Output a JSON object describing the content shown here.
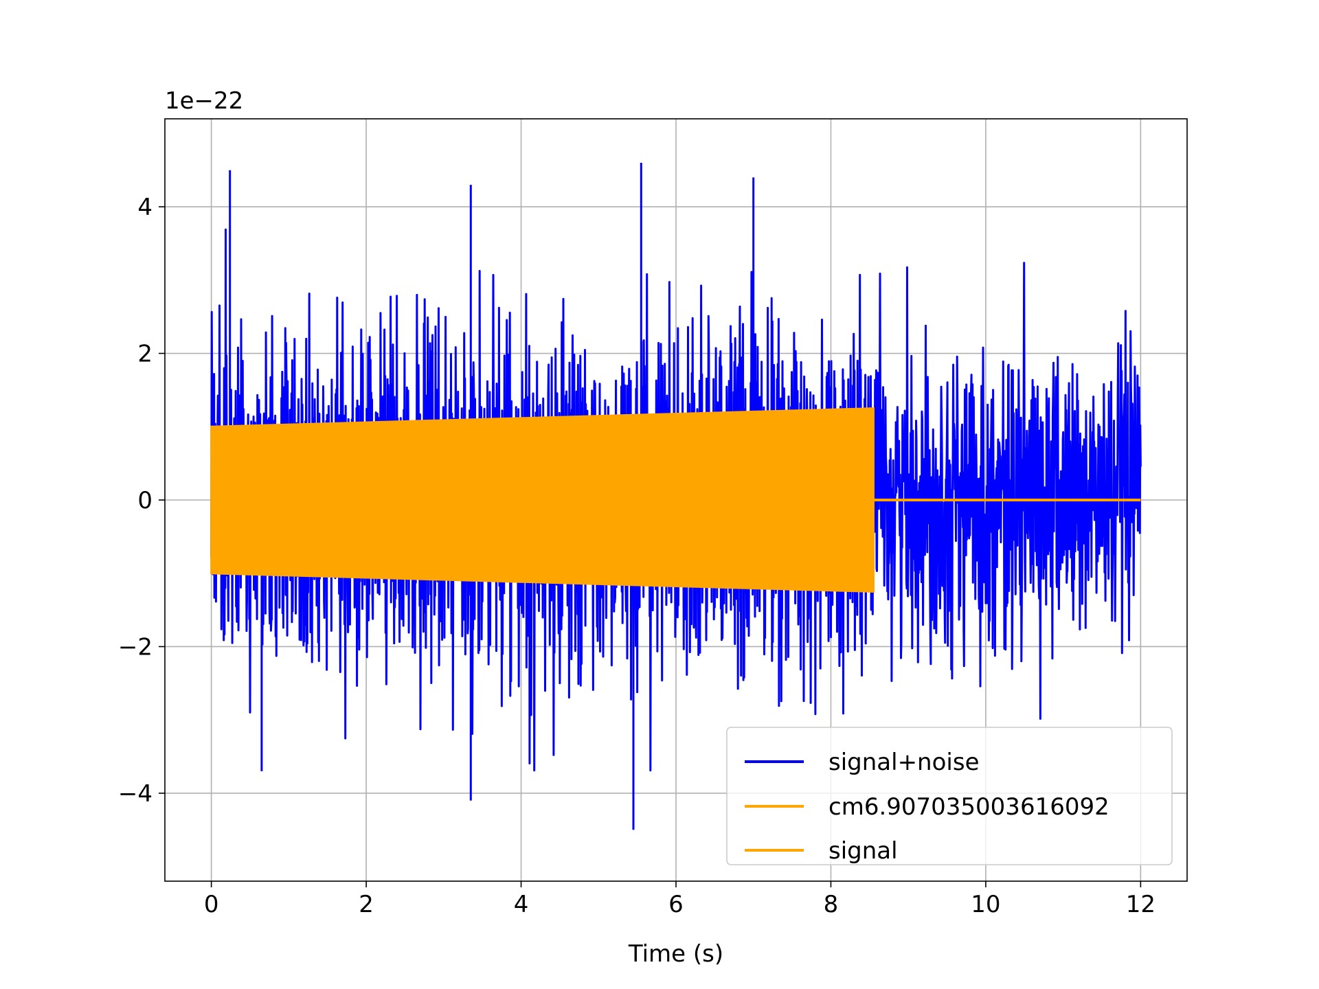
{
  "chart_data": {
    "type": "line",
    "title": "",
    "xlabel": "Time (s)",
    "ylabel": "",
    "offset_text": "1e−22",
    "xlim": [
      -0.6,
      12.6
    ],
    "ylim": [
      -5.2,
      5.2
    ],
    "x_ticks": [
      0,
      2,
      4,
      6,
      8,
      10,
      12
    ],
    "x_tick_labels": [
      "0",
      "2",
      "4",
      "6",
      "8",
      "10",
      "12"
    ],
    "y_ticks": [
      -4,
      -2,
      0,
      2,
      4
    ],
    "y_tick_labels": [
      "−4",
      "−2",
      "0",
      "2",
      "4"
    ],
    "grid": true,
    "legend_position": "lower-right",
    "series": [
      {
        "name": "signal+noise",
        "color": "#0000ff",
        "x_range": [
          0,
          12
        ],
        "typical_range": [
          -2.5,
          2.5
        ],
        "peak_max": 4.5,
        "peak_min": -4.5,
        "notable_peaks": [
          {
            "x": 0.24,
            "y": 4.5
          },
          {
            "x": 5.55,
            "y": 4.6
          },
          {
            "x": 7.0,
            "y": 4.4
          },
          {
            "x": 3.35,
            "y": 4.3
          },
          {
            "x": 5.45,
            "y": -4.5
          },
          {
            "x": 3.35,
            "y": -4.1
          },
          {
            "x": 0.65,
            "y": -3.7
          }
        ]
      },
      {
        "name": "cm6.907035003616092",
        "color": "#ffa500",
        "x_range": [
          0,
          8.55
        ],
        "amplitude_start": 1.0,
        "amplitude_end": 1.25
      },
      {
        "name": "signal",
        "color": "#ffa500",
        "x_range": [
          0,
          12
        ],
        "nonzero_until": 8.55,
        "amplitude_start": 1.0,
        "amplitude_end": 1.25,
        "value_after": 0
      }
    ]
  }
}
